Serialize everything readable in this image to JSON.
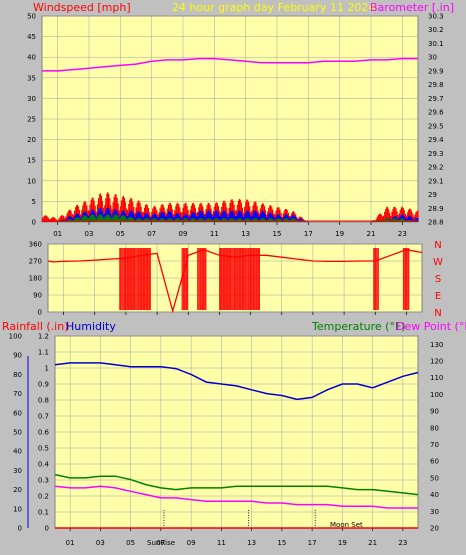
{
  "colors": {
    "background": "#c0c0c0",
    "plot_bg": "#ffffaa",
    "grid": "#a0a0a0",
    "red": "#ff0000",
    "blue": "#0000ff",
    "green": "#008000",
    "magenta": "#ff00ff",
    "darkblue": "#0000cc",
    "yellow_title": "#ffff00"
  },
  "header": {
    "windspeed_label": "Windspeed [mph]",
    "graph_title": "24 hour graph day   February 11 2024",
    "barometer_label": "Barometer [.in]"
  },
  "bottom_titles": {
    "rainfall_label": "Rainfall (.in)",
    "humidity_label": "Humidity",
    "temperature_label": "Temperature (°F)",
    "dewpoint_label": "Dew Point (°F)"
  },
  "annotations": {
    "sunrise": "SunRise",
    "moonset": "Moon Set"
  },
  "x_ticks": [
    "01",
    "03",
    "05",
    "07",
    "09",
    "11",
    "13",
    "15",
    "17",
    "19",
    "21",
    "23"
  ],
  "chart_data": [
    {
      "type": "line",
      "title": "24 hour graph day   February 11 2024",
      "x_ticks": [
        "01",
        "03",
        "05",
        "07",
        "09",
        "11",
        "13",
        "15",
        "17",
        "19",
        "21",
        "23"
      ],
      "left_axis": {
        "label": "Windspeed [mph]",
        "ticks": [
          "0",
          "5",
          "10",
          "15",
          "20",
          "25",
          "30",
          "35",
          "40",
          "45",
          "50"
        ],
        "ylim": [
          0,
          50
        ]
      },
      "right_axis": {
        "label": "Barometer [.in]",
        "ticks": [
          "28.8",
          "28.9",
          "29",
          "29.1",
          "29.2",
          "29.3",
          "29.4",
          "29.5",
          "29.6",
          "29.7",
          "29.8",
          "29.9",
          "30",
          "30.1",
          "30.2",
          "30.3"
        ],
        "ylim": [
          28.8,
          30.3
        ]
      },
      "series": [
        {
          "name": "Barometer [.in]",
          "color": "#ff00ff",
          "x": [
            0,
            1,
            2,
            3,
            4,
            5,
            6,
            7,
            8,
            9,
            10,
            11,
            12,
            13,
            14,
            15,
            16,
            17,
            18,
            19,
            20,
            21,
            22,
            23,
            24
          ],
          "values": [
            29.9,
            29.9,
            29.91,
            29.92,
            29.93,
            29.94,
            29.95,
            29.97,
            29.98,
            29.98,
            29.99,
            29.99,
            29.98,
            29.97,
            29.96,
            29.96,
            29.96,
            29.96,
            29.97,
            29.97,
            29.97,
            29.98,
            29.98,
            29.99,
            29.99
          ]
        },
        {
          "color": "#ff0000",
          "x": [
            0,
            1,
            2,
            3,
            4,
            5,
            6,
            7,
            8,
            9,
            10,
            11,
            12,
            13,
            14,
            15,
            16,
            17,
            18,
            19,
            20,
            21,
            22,
            23,
            24
          ],
          "values": [
            2,
            1,
            4,
            6,
            8,
            7,
            6,
            4,
            5,
            5,
            5,
            5,
            6,
            6,
            5,
            4,
            3,
            0,
            0,
            0,
            0,
            0,
            4,
            4,
            3
          ]
        },
        {
          "color": "#0000ff",
          "x": [
            0,
            1,
            2,
            3,
            4,
            5,
            6,
            7,
            8,
            9,
            10,
            11,
            12,
            13,
            14,
            15,
            16,
            17,
            18,
            19,
            20,
            21,
            22,
            23,
            24
          ],
          "values": [
            0,
            0,
            2,
            3,
            4,
            3,
            3,
            2,
            3,
            2,
            3,
            3,
            3,
            3,
            3,
            2,
            2,
            0,
            0,
            0,
            0,
            0,
            1,
            2,
            1
          ]
        },
        {
          "color": "#008000",
          "x": [
            0,
            1,
            2,
            3,
            4,
            5,
            6,
            7,
            8,
            9,
            10,
            11,
            12,
            13,
            14,
            15,
            16,
            17,
            18,
            19,
            20,
            21,
            22,
            23,
            24
          ],
          "values": [
            0,
            0,
            1,
            2,
            2,
            2,
            1,
            1,
            1,
            1,
            1,
            1,
            1,
            1,
            1,
            1,
            1,
            0,
            0,
            0,
            0,
            0,
            1,
            1,
            0
          ]
        }
      ]
    },
    {
      "type": "line",
      "left_axis": {
        "ticks": [
          "360",
          "270",
          "180",
          "90",
          "0"
        ],
        "ylim": [
          0,
          360
        ]
      },
      "right_axis": {
        "ticks": [
          "N",
          "W",
          "S",
          "E",
          "N"
        ]
      },
      "series": [
        {
          "color": "#ff0000",
          "x": [
            0,
            0.3,
            1,
            2,
            3,
            4,
            5,
            6,
            7,
            8,
            9,
            10,
            11,
            12,
            13,
            14,
            15,
            16,
            17,
            18,
            19,
            20,
            21,
            22,
            23,
            24
          ],
          "values": [
            270,
            265,
            268,
            270,
            275,
            280,
            285,
            300,
            310,
            5,
            300,
            330,
            300,
            290,
            300,
            300,
            290,
            280,
            270,
            268,
            268,
            270,
            270,
            300,
            330,
            315
          ]
        }
      ]
    },
    {
      "type": "line",
      "left_axis": {
        "label": "Rainfall (.in)",
        "ticks": [
          "0",
          "0.1",
          "0.2",
          "0.3",
          "0.4",
          "0.5",
          "0.6",
          "0.7",
          "0.8",
          "0.9",
          "1",
          "1.1",
          "1.2"
        ],
        "ylim": [
          0,
          1.2
        ]
      },
      "left_axis2": {
        "label": "Humidity",
        "ticks": [
          "0",
          "10",
          "20",
          "30",
          "40",
          "50",
          "60",
          "70",
          "80",
          "90",
          "100"
        ],
        "ylim": [
          0,
          100
        ]
      },
      "right_axis": {
        "label": "Temperature (°F) / Dew Point (°F)",
        "ticks": [
          "20",
          "30",
          "40",
          "50",
          "60",
          "70",
          "80",
          "90",
          "100",
          "110",
          "120",
          "130"
        ],
        "ylim": [
          20,
          135
        ]
      },
      "series": [
        {
          "name": "Humidity",
          "color": "#0000cc",
          "x": [
            0,
            1,
            2,
            3,
            4,
            5,
            6,
            7,
            8,
            9,
            10,
            11,
            12,
            13,
            14,
            15,
            16,
            17,
            18,
            19,
            20,
            21,
            22,
            23,
            24
          ],
          "values": [
            85,
            86,
            86,
            86,
            85,
            84,
            84,
            84,
            83,
            80,
            76,
            75,
            74,
            72,
            70,
            69,
            67,
            68,
            72,
            75,
            75,
            73,
            76,
            79,
            81
          ]
        },
        {
          "name": "Temperature (°F)",
          "color": "#008000",
          "x": [
            0,
            1,
            2,
            3,
            4,
            5,
            6,
            7,
            8,
            9,
            10,
            11,
            12,
            13,
            14,
            15,
            16,
            17,
            18,
            19,
            20,
            21,
            22,
            23,
            24
          ],
          "values": [
            52,
            50,
            50,
            51,
            51,
            49,
            46,
            44,
            43,
            44,
            44,
            44,
            45,
            45,
            45,
            45,
            45,
            45,
            45,
            44,
            43,
            43,
            42,
            41,
            40
          ]
        },
        {
          "name": "Dew Point (°F)",
          "color": "#ff00ff",
          "x": [
            0,
            1,
            2,
            3,
            4,
            5,
            6,
            7,
            8,
            9,
            10,
            11,
            12,
            13,
            14,
            15,
            16,
            17,
            18,
            19,
            20,
            21,
            22,
            23,
            24
          ],
          "values": [
            45,
            44,
            44,
            45,
            44,
            42,
            40,
            38,
            38,
            37,
            36,
            36,
            36,
            36,
            35,
            35,
            34,
            34,
            34,
            33,
            33,
            33,
            32,
            32,
            32
          ]
        },
        {
          "name": "Rainfall (.in)",
          "color": "#ff0000",
          "x": [
            0,
            24
          ],
          "values": [
            0,
            0
          ]
        }
      ]
    }
  ]
}
